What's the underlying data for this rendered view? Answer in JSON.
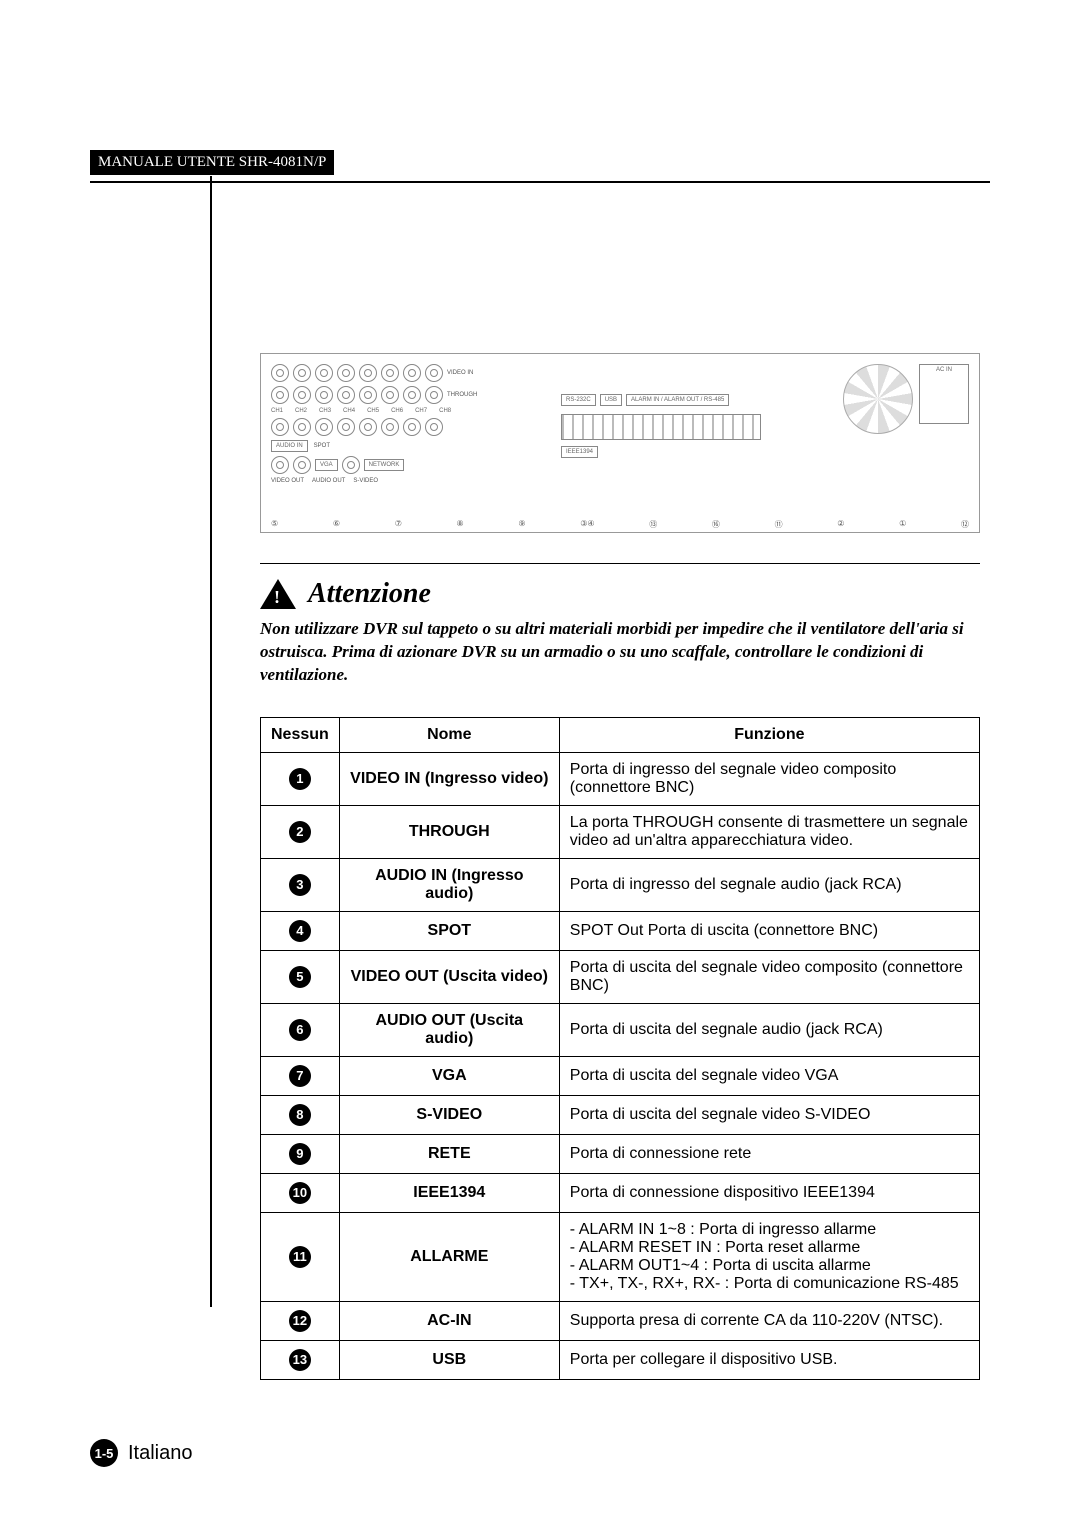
{
  "header": {
    "manual_title": "MANUALE UTENTE SHR-4081N/P"
  },
  "diagram": {
    "video_in_label": "VIDEO IN",
    "through_label": "THROUGH",
    "audio_in_label": "AUDIO IN",
    "spot_label": "SPOT",
    "video_out_label": "VIDEO OUT",
    "audio_out_label": "AUDIO OUT",
    "vga_label": "VGA",
    "svideo_label": "S-VIDEO",
    "network_label": "NETWORK",
    "ieee_label": "IEEE1394",
    "rs232c_label": "RS-232C",
    "usb_label": "USB",
    "alarm_label": "ALARM IN / ALARM OUT / RS-485",
    "acin_label": "AC IN",
    "ch_labels": [
      "CH1",
      "CH2",
      "CH3",
      "CH4",
      "CH5",
      "CH6",
      "CH7",
      "CH8"
    ],
    "callouts": [
      "⑤",
      "⑥",
      "⑦",
      "⑧",
      "⑨",
      "③④",
      "⑬",
      "⑯",
      "⑪",
      "②",
      "①",
      "⑫"
    ]
  },
  "attention": {
    "heading": "Attenzione",
    "body": "Non utilizzare DVR sul tappeto o su altri materiali morbidi per impedire che il ventilatore dell'aria si ostruisca. Prima di azionare DVR su un armadio o su uno scaffale, controllare le condizioni di ventilazione."
  },
  "table": {
    "headers": {
      "num": "Nessun",
      "name": "Nome",
      "func": "Funzione"
    },
    "rows": [
      {
        "n": "1",
        "name": "VIDEO IN (Ingresso video)",
        "func": "Porta di ingresso del segnale video composito (connettore BNC)"
      },
      {
        "n": "2",
        "name": "THROUGH",
        "func": "La porta THROUGH consente di trasmettere un segnale video ad un'altra apparecchiatura video."
      },
      {
        "n": "3",
        "name": "AUDIO IN  (Ingresso audio)",
        "func": "Porta di ingresso del segnale audio (jack RCA)"
      },
      {
        "n": "4",
        "name": "SPOT",
        "func": "SPOT Out Porta di uscita (connettore BNC)"
      },
      {
        "n": "5",
        "name": "VIDEO OUT (Uscita video)",
        "func": "Porta di uscita del segnale video composito (connettore BNC)"
      },
      {
        "n": "6",
        "name": "AUDIO OUT (Uscita audio)",
        "func": "Porta di uscita del segnale audio (jack RCA)"
      },
      {
        "n": "7",
        "name": "VGA",
        "func": "Porta di uscita del segnale video VGA"
      },
      {
        "n": "8",
        "name": "S-VIDEO",
        "func": "Porta di uscita del segnale video S-VIDEO"
      },
      {
        "n": "9",
        "name": "RETE",
        "func": "Porta di connessione rete"
      },
      {
        "n": "10",
        "name": "IEEE1394",
        "func": "Porta di connessione dispositivo IEEE1394"
      },
      {
        "n": "11",
        "name": "ALLARME",
        "func_list": [
          "ALARM IN 1~8 : Porta di ingresso allarme",
          "ALARM RESET IN : Porta reset allarme",
          "ALARM OUT1~4 : Porta di uscita allarme",
          "TX+, TX-, RX+, RX- : Porta di comunicazione RS-485"
        ]
      },
      {
        "n": "12",
        "name": "AC-IN",
        "func": "Supporta presa di corrente CA da 110-220V (NTSC)."
      },
      {
        "n": "13",
        "name": "USB",
        "func": "Porta per collegare il dispositivo USB."
      }
    ]
  },
  "footer": {
    "page": "1-5",
    "lang": "Italiano"
  },
  "style": {
    "colors": {
      "text": "#000000",
      "bg": "#ffffff",
      "header_bg": "#000000",
      "header_fg": "#ffffff",
      "diagram_border": "#999999"
    },
    "fonts": {
      "body": "Arial",
      "serif": "Times New Roman",
      "att_size_pt": 21,
      "body_size_pt": 12
    }
  }
}
